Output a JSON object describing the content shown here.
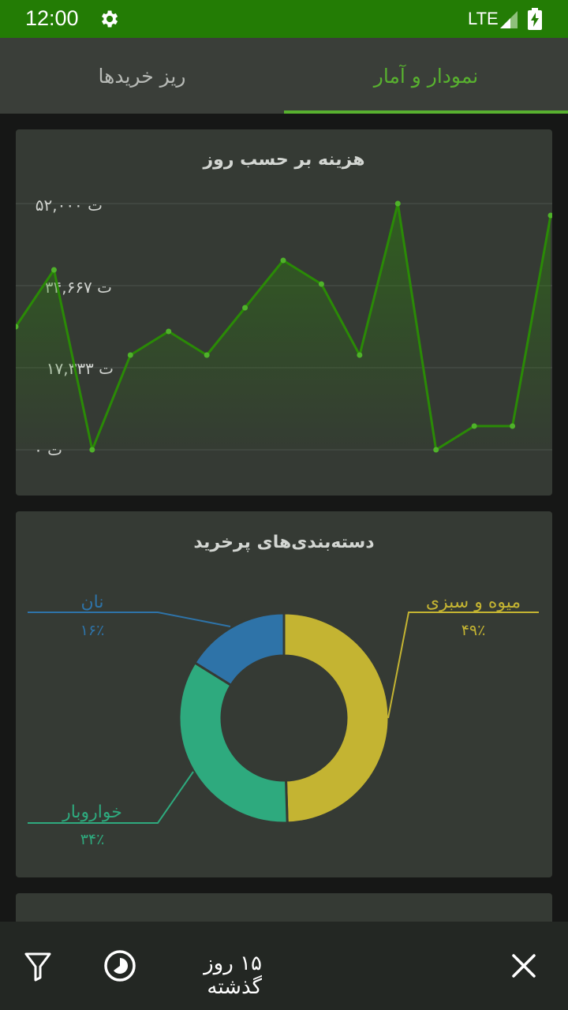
{
  "status_bar": {
    "time": "12:00",
    "network": "LTE"
  },
  "tabs": {
    "stats": "نمودار و آمار",
    "details": "ریز خریدها"
  },
  "daily_chart": {
    "title": "هزینه بر حسب روز",
    "y_ticks": [
      "ت ۵۲,۰۰۰",
      "ت ۳۴,۶۶۷",
      "ت ۱۷,۳۳۳",
      "ت ۰"
    ]
  },
  "categories_chart": {
    "title": "دسته‌بندی‌های پرخرید",
    "labels": {
      "bread": "نان",
      "bread_pct": "۱۶٪",
      "fruit": "میوه و سبزی",
      "fruit_pct": "۴۹٪",
      "grocery": "خواروبار",
      "grocery_pct": "۳۴٪"
    }
  },
  "bottom_bar": {
    "period": "۱۵ روز گذشته"
  },
  "colors": {
    "accent": "#58b12f",
    "line": "#2a8a06",
    "fruit": "#c4b432",
    "grocery": "#2eaa7e",
    "bread": "#2e73a8"
  },
  "chart_data": [
    {
      "type": "line",
      "title": "هزینه بر حسب روز",
      "x": [
        1,
        2,
        3,
        4,
        5,
        6,
        7,
        8,
        9,
        10,
        11,
        12,
        13,
        14,
        15
      ],
      "series": [
        {
          "values": [
            26000,
            38000,
            0,
            20000,
            25000,
            20000,
            30000,
            40000,
            35000,
            20000,
            52000,
            0,
            5000,
            5000,
            49500
          ]
        }
      ],
      "ylim": [
        0,
        52000
      ],
      "grid": true
    },
    {
      "type": "pie",
      "title": "دسته‌بندی‌های پرخرید",
      "categories": [
        "میوه و سبزی",
        "خواروبار",
        "نان"
      ],
      "values": [
        49,
        34,
        16
      ]
    }
  ]
}
